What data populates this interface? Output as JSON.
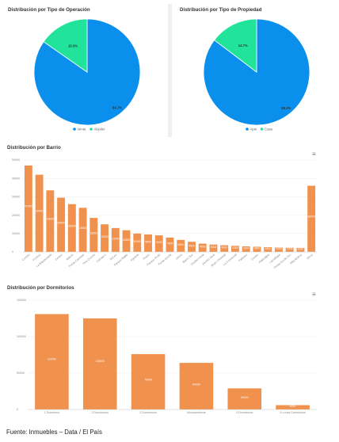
{
  "charts": {
    "operacion": {
      "title": "Distribución por Tipo de Operación",
      "chart_data": {
        "type": "pie",
        "title": "Distribución por Tipo de Operación",
        "slices": [
          {
            "name": "Venta",
            "value": 84.7,
            "label": "84.7%",
            "color": "#0a8fec"
          },
          {
            "name": "Alquiler",
            "value": 15.3,
            "label": "15.3%",
            "color": "#22e39a"
          }
        ],
        "legend": "bottom"
      }
    },
    "propiedad": {
      "title": "Distribución por Tipo de Propiedad",
      "chart_data": {
        "type": "pie",
        "title": "Distribución por Tipo de Propiedad",
        "slices": [
          {
            "name": "Apto",
            "value": 85.3,
            "label": "85.3%",
            "color": "#0a8fec"
          },
          {
            "name": "Casa",
            "value": 14.7,
            "label": "14.7%",
            "color": "#22e39a"
          }
        ],
        "legend": "bottom"
      }
    },
    "barrio": {
      "title": "Distribución por Barrio",
      "menu_icon": "hamburger-menu-icon",
      "chart_data": {
        "type": "bar",
        "title": "Distribución por Barrio",
        "color": "#f0914e",
        "ylim": [
          0,
          50000
        ],
        "yticks": [
          "50000",
          "40000",
          "30000",
          "20000",
          "10000",
          "0"
        ],
        "grid": true,
        "categories": [
          "Cordón",
          "Pocitos",
          "La Blanqueada",
          "Centro",
          "Malvín",
          "Punta Carretas",
          "Tres Cruces",
          "Carrasco",
          "Buceo",
          "Parque Batlle",
          "Aguada",
          "Prado",
          "Parque Rodó",
          "Punta Gorda",
          "Unión",
          "Barrio Sur",
          "Ciudad Vieja",
          "Jacinto Vera",
          "Brazo Oriental",
          "La Comercial",
          "Palermo",
          "Cerrito",
          "Atahualpa",
          "Larrañaga",
          "Punta Gorda Sur",
          "Villa Muñoz",
          "Otros"
        ],
        "values": [
          47000,
          42000,
          33500,
          29500,
          26000,
          24000,
          18500,
          15000,
          13000,
          11800,
          10000,
          9500,
          9000,
          7800,
          6500,
          5500,
          4500,
          4000,
          3600,
          3300,
          3000,
          2800,
          2600,
          2400,
          2300,
          2200,
          36000
        ]
      }
    },
    "dormitorios": {
      "title": "Distribución por Dormitorios",
      "menu_icon": "hamburger-menu-icon",
      "chart_data": {
        "type": "bar",
        "title": "Distribución por Dormitorios",
        "color": "#f0914e",
        "ylim": [
          0,
          150000
        ],
        "yticks": [
          "150000",
          "100000",
          "50000",
          "0"
        ],
        "grid": true,
        "categories": [
          "1 Dormitorio",
          "2 Dormitorios",
          "3 Dormitorios",
          "Monoambiente",
          "4 Dormitorios",
          "5 o más Dormitorios"
        ],
        "values": [
          131000,
          125000,
          76000,
          64000,
          29000,
          6000
        ]
      }
    }
  },
  "footer": {
    "source": "Fuente: Inmuebles – Data / El País"
  }
}
